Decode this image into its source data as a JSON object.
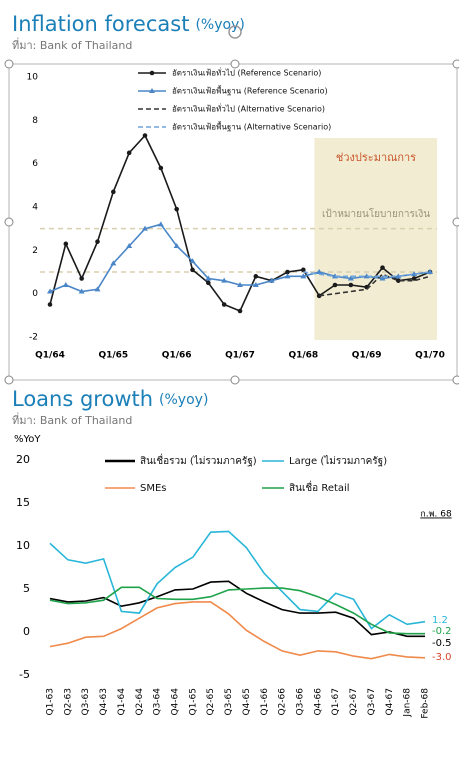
{
  "chart_data": [
    {
      "type": "line",
      "title": "Inflation forecast",
      "subtitle": "(%yoy)",
      "source": "ที่มา: Bank of Thailand",
      "categories": [
        "Q1/64",
        null,
        null,
        null,
        "Q1/65",
        null,
        null,
        null,
        "Q1/66",
        null,
        null,
        null,
        "Q1/67",
        null,
        null,
        null,
        "Q1/68",
        null,
        null,
        null,
        "Q1/69",
        null,
        null,
        null,
        "Q1/70"
      ],
      "series": [
        {
          "name": "อัตราเงินเฟ้อทั่วไป (Reference Scenario)",
          "color": "#1a1a1a",
          "marker": "circle",
          "dash": false,
          "values": [
            -0.5,
            2.3,
            0.7,
            2.4,
            4.7,
            6.5,
            7.3,
            5.8,
            3.9,
            1.1,
            0.5,
            -0.5,
            -0.8,
            0.8,
            0.6,
            1.0,
            1.1,
            -0.1,
            0.4,
            0.4,
            0.3,
            1.2,
            0.6,
            0.7,
            1.0
          ]
        },
        {
          "name": "อัตราเงินเฟ้อพื้นฐาน (Reference Scenario)",
          "color": "#4a86c8",
          "marker": "triangle",
          "dash": false,
          "values": [
            0.1,
            0.4,
            0.1,
            0.2,
            1.4,
            2.2,
            3.0,
            3.2,
            2.2,
            1.5,
            0.7,
            0.6,
            0.4,
            0.4,
            0.6,
            0.8,
            0.8,
            1.0,
            0.8,
            0.7,
            0.8,
            0.7,
            0.8,
            0.9,
            1.0
          ]
        },
        {
          "name": "อัตราเงินเฟ้อทั่วไป (Alternative Scenario)",
          "color": "#333333",
          "marker": null,
          "dash": true,
          "values": [
            null,
            null,
            null,
            null,
            null,
            null,
            null,
            null,
            null,
            null,
            null,
            null,
            null,
            null,
            null,
            null,
            null,
            -0.1,
            0.0,
            0.1,
            0.2,
            0.9,
            0.6,
            0.6,
            0.8
          ]
        },
        {
          "name": "อัตราเงินเฟ้อพื้นฐาน (Alternative Scenario)",
          "color": "#6fa3dc",
          "marker": null,
          "dash": true,
          "values": [
            null,
            null,
            null,
            null,
            null,
            null,
            null,
            null,
            null,
            null,
            null,
            null,
            null,
            null,
            null,
            null,
            1.0,
            0.9,
            0.8,
            0.8,
            0.8,
            0.8,
            0.8,
            0.9,
            1.0
          ]
        }
      ],
      "ylim": [
        -2,
        10
      ],
      "yticks": [
        -2,
        0,
        2,
        4,
        6,
        8,
        10
      ],
      "target_lines": [
        1,
        3
      ],
      "annotations": [
        "ช่วงประมาณการ",
        "เป้าหมายนโยบายการเงิน"
      ]
    },
    {
      "type": "line",
      "title": "Loans growth",
      "subtitle": "(%yoy)",
      "source": "ที่มา: Bank of Thailand",
      "y_label": "%YoY",
      "categories": [
        "Q1-63",
        "Q2-63",
        "Q3-63",
        "Q4-63",
        "Q1-64",
        "Q2-64",
        "Q3-64",
        "Q4-64",
        "Q1-65",
        "Q2-65",
        "Q3-65",
        "Q4-65",
        "Q1-66",
        "Q2-66",
        "Q3-66",
        "Q4-66",
        "Q1-67",
        "Q2-67",
        "Q3-67",
        "Q4-67",
        "Jan-68",
        "Feb-68"
      ],
      "series": [
        {
          "name": "สินเชื่อรวม (ไม่รวมภาครัฐ)",
          "color": "#000000",
          "marker": null,
          "dash": false,
          "values": [
            3.9,
            3.5,
            3.6,
            4.0,
            3.0,
            3.4,
            4.1,
            4.9,
            5.0,
            5.8,
            5.9,
            4.5,
            3.5,
            2.6,
            2.2,
            2.2,
            2.3,
            1.6,
            -0.3,
            0.0,
            -0.5,
            -0.5
          ],
          "value_labels": [
            null,
            null,
            null,
            null,
            null,
            null,
            null,
            null,
            null,
            null,
            null,
            null,
            null,
            null,
            null,
            null,
            null,
            null,
            null,
            null,
            null,
            "-0.5"
          ]
        },
        {
          "name": "Large (ไม่รวมภาครัฐ)",
          "color": "#29b6d8",
          "marker": null,
          "dash": false,
          "values": [
            10.3,
            8.4,
            8.0,
            8.5,
            2.4,
            2.2,
            5.6,
            7.5,
            8.7,
            11.6,
            11.7,
            9.8,
            6.8,
            4.7,
            2.6,
            2.4,
            4.5,
            3.8,
            0.4,
            2.0,
            0.9,
            1.2
          ],
          "value_labels": [
            null,
            null,
            null,
            null,
            null,
            null,
            null,
            null,
            null,
            null,
            null,
            null,
            null,
            null,
            null,
            null,
            null,
            null,
            null,
            null,
            null,
            "1.2"
          ]
        },
        {
          "name": "SMEs",
          "color": "#f08a4b",
          "marker": null,
          "dash": false,
          "values": [
            -1.7,
            -1.3,
            -0.6,
            -0.5,
            0.4,
            1.6,
            2.8,
            3.3,
            3.5,
            3.5,
            2.1,
            0.2,
            -1.1,
            -2.2,
            -2.7,
            -2.2,
            -2.3,
            -2.8,
            -3.1,
            -2.6,
            -2.9,
            -3.0
          ],
          "value_labels": [
            null,
            null,
            null,
            null,
            null,
            null,
            null,
            null,
            null,
            null,
            null,
            null,
            null,
            null,
            null,
            null,
            null,
            null,
            null,
            null,
            null,
            "-3.0"
          ]
        },
        {
          "name": "สินเชื่อ Retail",
          "color": "#1fa34a",
          "marker": null,
          "dash": false,
          "values": [
            3.7,
            3.3,
            3.4,
            3.7,
            5.2,
            5.2,
            3.9,
            3.8,
            3.8,
            4.1,
            4.9,
            5.0,
            5.1,
            5.1,
            4.8,
            4.1,
            3.2,
            2.2,
            0.9,
            -0.1,
            -0.2,
            -0.2
          ],
          "value_labels": [
            null,
            null,
            null,
            null,
            null,
            null,
            null,
            null,
            null,
            null,
            null,
            null,
            null,
            null,
            null,
            null,
            null,
            null,
            null,
            null,
            null,
            "-0.2"
          ]
        }
      ],
      "ylim": [
        -5,
        20
      ],
      "yticks": [
        -5,
        0,
        5,
        10,
        15,
        20
      ],
      "annotations": [
        "ก.พ. 68"
      ]
    }
  ]
}
